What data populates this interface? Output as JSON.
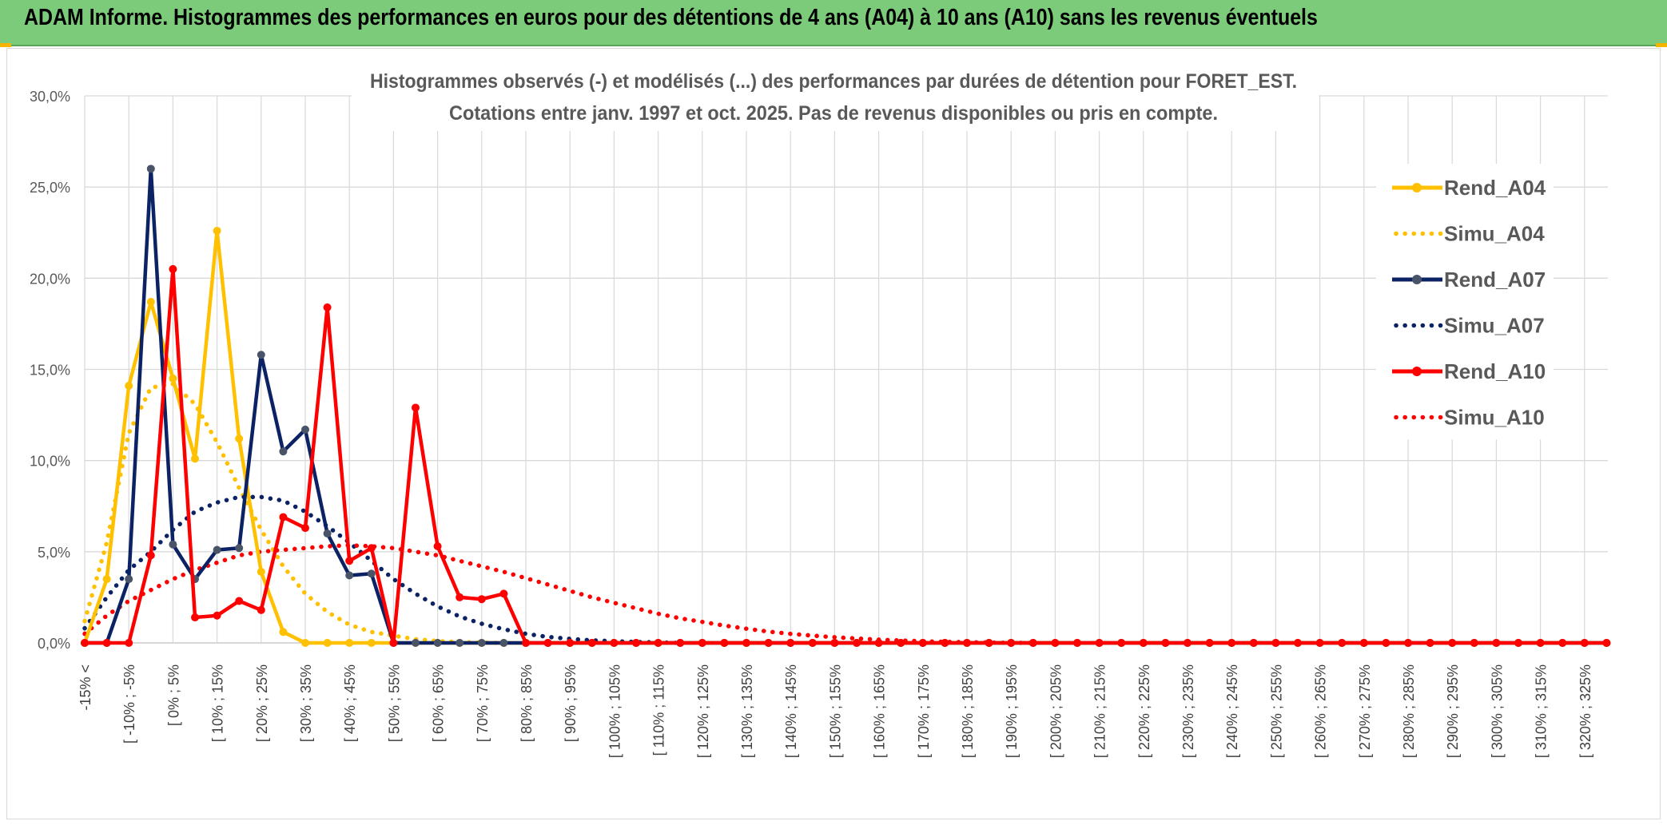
{
  "header": {
    "title": "ADAM Informe. Histogrammes des performances en euros pour des détentions de 4 ans (A04) à 10 ans (A10) sans les revenus éventuels",
    "background": "#7ccb7a"
  },
  "chart_data": {
    "type": "line",
    "title_line1": "Histogrammes observés (-) et modélisés (...) des performances par durées de détention pour FORET_EST.",
    "title_line2": "Cotations entre janv. 1997 et oct. 2025. Pas de revenus disponibles ou pris en compte.",
    "xlabel": "",
    "ylabel": "",
    "ylim": [
      0,
      30
    ],
    "yticks": [
      "0,0%",
      "5,0%",
      "10,0%",
      "15,0%",
      "20,0%",
      "25,0%",
      "30,0%"
    ],
    "grid": true,
    "legend_position": "right",
    "tick_labels": [
      "-15% <",
      "[ -10% ; -5%",
      "[ 0% ; 5%",
      "[ 10% ; 15%",
      "[ 20% ; 25%",
      "[ 30% ; 35%",
      "[ 40% ; 45%",
      "[ 50% ; 55%",
      "[ 60% ; 65%",
      "[ 70% ; 75%",
      "[ 80% ; 85%",
      "[ 90% ; 95%",
      "[ 100% ; 105%",
      "[ 110% ; 115%",
      "[ 120% ; 125%",
      "[ 130% ; 135%",
      "[ 140% ; 145%",
      "[ 150% ; 155%",
      "[ 160% ; 165%",
      "[ 170% ; 175%",
      "[ 180% ; 185%",
      "[ 190% ; 195%",
      "[ 200% ; 205%",
      "[ 210% ; 215%",
      "[ 220% ; 225%",
      "[ 230% ; 235%",
      "[ 240% ; 245%",
      "[ 250% ; 255%",
      "[ 260% ; 265%",
      "[ 270% ; 275%",
      "[ 280% ; 285%",
      "[ 290% ; 295%",
      "[ 300% ; 305%",
      "[ 310% ; 315%",
      "[ 320% ; 325%"
    ],
    "num_categories": 70,
    "series": [
      {
        "name": "Rend_A04",
        "style": "solid",
        "color": "#ffc000",
        "values": [
          0,
          3.5,
          14.1,
          18.7,
          14.5,
          10.1,
          22.6,
          11.2,
          3.9,
          0.6,
          0,
          0,
          0,
          0,
          0
        ]
      },
      {
        "name": "Simu_A04",
        "style": "dotted",
        "color": "#ffc000",
        "values": [
          1.2,
          5.5,
          11.5,
          14.0,
          14.2,
          13.1,
          11.0,
          8.5,
          6.2,
          4.2,
          2.7,
          1.7,
          1.0,
          0.6,
          0.4,
          0.2,
          0.1,
          0.05,
          0.02,
          0
        ]
      },
      {
        "name": "Rend_A07",
        "style": "solid",
        "color": "#0b2265",
        "values": [
          0,
          0,
          3.5,
          26.0,
          5.4,
          3.5,
          5.1,
          5.2,
          15.8,
          10.5,
          11.7,
          6.0,
          3.7,
          3.8,
          0,
          0,
          0,
          0,
          0,
          0
        ]
      },
      {
        "name": "Simu_A07",
        "style": "dotted",
        "color": "#0b2265",
        "values": [
          0.8,
          2.5,
          4.0,
          5.0,
          6.2,
          7.2,
          7.7,
          8.0,
          8.0,
          7.8,
          7.2,
          6.4,
          5.5,
          4.5,
          3.5,
          2.7,
          2.0,
          1.45,
          1.05,
          0.75,
          0.5,
          0.33,
          0.22,
          0.14,
          0.09,
          0.05,
          0.03,
          0
        ]
      },
      {
        "name": "Rend_A10",
        "style": "solid",
        "color": "#ff0000",
        "values": [
          0,
          0,
          0,
          4.8,
          20.5,
          1.4,
          1.5,
          2.3,
          1.8,
          6.9,
          6.3,
          18.4,
          4.5,
          5.2,
          0,
          12.9,
          5.3,
          2.5,
          2.4,
          2.7,
          0
        ]
      },
      {
        "name": "Simu_A10",
        "style": "dotted",
        "color": "#ff0000",
        "values": [
          0.5,
          1.5,
          2.3,
          2.9,
          3.5,
          4.0,
          4.4,
          4.8,
          5.0,
          5.1,
          5.2,
          5.3,
          5.35,
          5.3,
          5.2,
          5.0,
          4.8,
          4.5,
          4.2,
          3.9,
          3.55,
          3.2,
          2.85,
          2.5,
          2.2,
          1.9,
          1.6,
          1.35,
          1.15,
          0.95,
          0.78,
          0.62,
          0.5,
          0.4,
          0.31,
          0.24,
          0.18,
          0.13,
          0.09,
          0.06,
          0.04,
          0.02,
          0.01,
          0
        ]
      }
    ]
  }
}
